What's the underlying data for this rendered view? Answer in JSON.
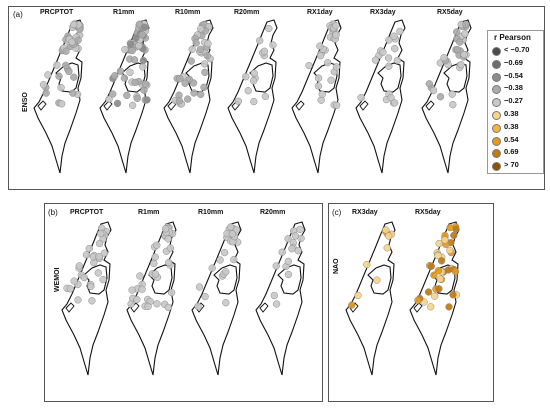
{
  "panels": {
    "a": {
      "label": "(a)",
      "row_label": "ENSO",
      "titles": [
        "PRCPTOT",
        "R1mm",
        "R10mm",
        "R20mm",
        "RX1day",
        "RX3day",
        "RX5day"
      ]
    },
    "b": {
      "label": "(b)",
      "row_label": "WEMOI",
      "titles": [
        "PRCPTOT",
        "R1mm",
        "R10mm",
        "R20mm"
      ]
    },
    "c": {
      "label": "(c)",
      "row_label": "NAO",
      "titles": [
        "RX3day",
        "RX5day"
      ]
    }
  },
  "legend": {
    "title": "r Pearson",
    "items": [
      {
        "label": "< −0.70",
        "color": "#4a4a4a"
      },
      {
        "label": "−0.69",
        "color": "#6e6e6e"
      },
      {
        "label": "−0.54",
        "color": "#8c8c8c"
      },
      {
        "label": "−0.38",
        "color": "#ababab"
      },
      {
        "label": "−0.27",
        "color": "#c8c8c8"
      },
      {
        "label": "0.38",
        "color": "#f7d48a"
      },
      {
        "label": "0.38",
        "color": "#f2b63e"
      },
      {
        "label": "0.54",
        "color": "#e69a18"
      },
      {
        "label": "0.69",
        "color": "#c07a10"
      },
      {
        "label": "> 70",
        "color": "#8a5208"
      }
    ]
  },
  "chart_data": [
    {
      "type": "map",
      "panel": "(a)",
      "row_label": "ENSO",
      "maps": [
        {
          "title": "PRCPTOT",
          "points": 45,
          "classes": [
            "−0.27",
            "−0.38"
          ]
        },
        {
          "title": "R1mm",
          "points": 62,
          "classes": [
            "−0.27",
            "−0.38",
            "−0.54"
          ]
        },
        {
          "title": "R10mm",
          "points": 40,
          "classes": [
            "−0.27",
            "−0.38"
          ]
        },
        {
          "title": "R20mm",
          "points": 14,
          "classes": [
            "−0.27"
          ]
        },
        {
          "title": "RX1day",
          "points": 30,
          "classes": [
            "−0.27"
          ]
        },
        {
          "title": "RX3day",
          "points": 18,
          "classes": [
            "−0.27"
          ]
        },
        {
          "title": "RX5day",
          "points": 32,
          "classes": [
            "−0.27",
            "−0.38"
          ]
        }
      ]
    },
    {
      "type": "map",
      "panel": "(b)",
      "row_label": "WEMOI",
      "maps": [
        {
          "title": "PRCPTOT",
          "points": 30,
          "classes": [
            "−0.27"
          ]
        },
        {
          "title": "R1mm",
          "points": 38,
          "classes": [
            "−0.27"
          ]
        },
        {
          "title": "R10mm",
          "points": 24,
          "classes": [
            "−0.27"
          ]
        },
        {
          "title": "R20mm",
          "points": 16,
          "classes": [
            "−0.27"
          ]
        }
      ]
    },
    {
      "type": "map",
      "panel": "(c)",
      "row_label": "NAO",
      "maps": [
        {
          "title": "RX3day",
          "points": 10,
          "classes": [
            "0.38",
            "0.54"
          ]
        },
        {
          "title": "RX5day",
          "points": 40,
          "classes": [
            "0.38",
            "0.54",
            "0.69"
          ]
        }
      ]
    }
  ]
}
